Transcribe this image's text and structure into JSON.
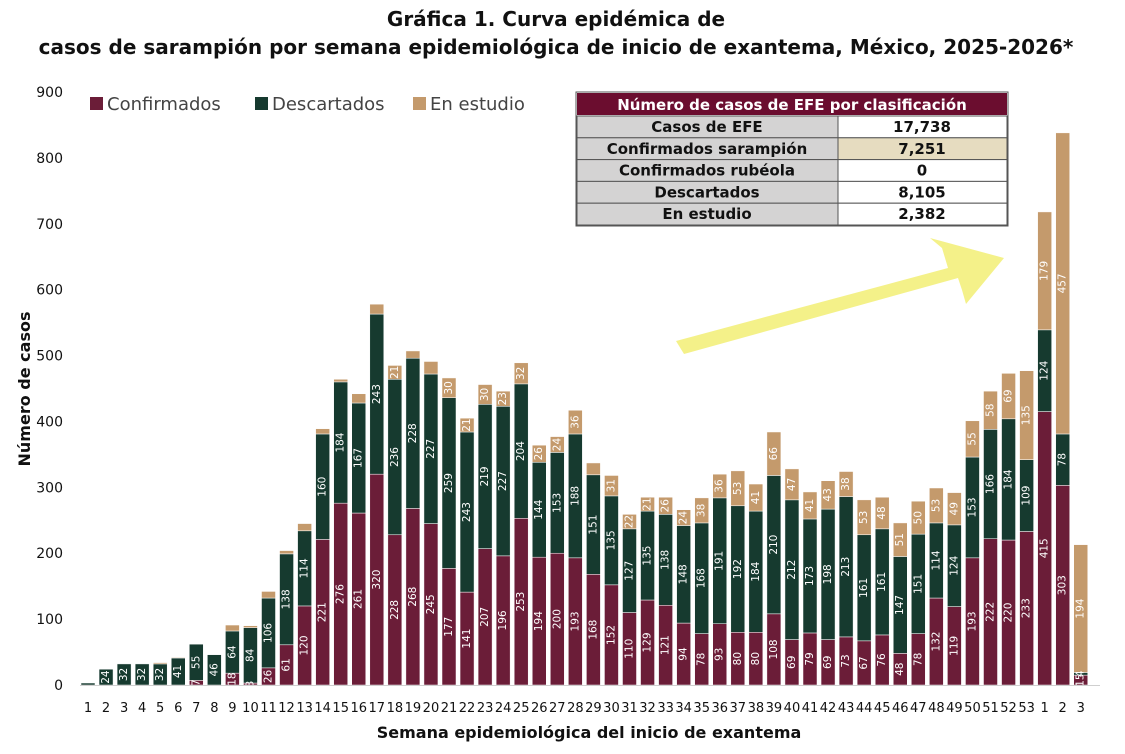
{
  "chart_data": {
    "type": "bar",
    "stacked": true,
    "title_line1": "Gráfica 1. Curva epidémica de",
    "title_line2": "casos de sarampión por semana epidemiológica de inicio de exantema, México, 2025-2026*",
    "xlabel": "Semana epidemiológica del inicio de exantema",
    "ylabel": "Número de casos",
    "ylim": [
      0,
      900
    ],
    "yticks": [
      0,
      100,
      200,
      300,
      400,
      500,
      600,
      700,
      800,
      900
    ],
    "grid": false,
    "legend_position": "top-left",
    "categories": [
      "1",
      "2",
      "3",
      "4",
      "5",
      "6",
      "7",
      "8",
      "9",
      "10",
      "11",
      "12",
      "13",
      "14",
      "15",
      "16",
      "17",
      "18",
      "19",
      "20",
      "21",
      "22",
      "23",
      "24",
      "25",
      "26",
      "27",
      "28",
      "29",
      "30",
      "31",
      "32",
      "33",
      "34",
      "35",
      "36",
      "37",
      "38",
      "39",
      "40",
      "41",
      "42",
      "43",
      "44",
      "45",
      "46",
      "47",
      "48",
      "49",
      "50",
      "51",
      "52",
      "53",
      "1",
      "2",
      "3"
    ],
    "series": [
      {
        "name": "Confirmados",
        "color": "#6b1d38",
        "values": [
          0,
          0,
          0,
          0,
          0,
          0,
          7,
          0,
          18,
          3,
          26,
          61,
          120,
          221,
          276,
          261,
          320,
          228,
          268,
          245,
          177,
          141,
          207,
          196,
          253,
          194,
          200,
          193,
          168,
          152,
          110,
          129,
          121,
          94,
          78,
          93,
          80,
          80,
          108,
          69,
          79,
          69,
          73,
          67,
          76,
          48,
          78,
          132,
          119,
          193,
          222,
          220,
          233,
          415,
          303,
          15
        ],
        "labels": [
          "",
          "",
          "",
          "",
          "",
          "",
          "7",
          "",
          "18",
          "3",
          "26",
          "61",
          "120",
          "221",
          "276",
          "261",
          "320",
          "228",
          "268",
          "245",
          "177",
          "141",
          "207",
          "196",
          "253",
          "194",
          "200",
          "193",
          "168",
          "152",
          "110",
          "129",
          "121",
          "94",
          "78",
          "93",
          "80",
          "80",
          "108",
          "69",
          "79",
          "69",
          "73",
          "67",
          "76",
          "48",
          "78",
          "132",
          "119",
          "193",
          "222",
          "220",
          "233",
          "415",
          "303",
          "15"
        ]
      },
      {
        "name": "Descartados",
        "color": "#163a2f",
        "values": [
          3,
          24,
          32,
          32,
          32,
          41,
          55,
          46,
          64,
          84,
          106,
          138,
          114,
          160,
          184,
          167,
          243,
          236,
          228,
          227,
          259,
          243,
          219,
          227,
          204,
          144,
          153,
          188,
          151,
          135,
          127,
          135,
          138,
          148,
          168,
          191,
          192,
          184,
          210,
          212,
          173,
          198,
          213,
          161,
          161,
          147,
          151,
          114,
          124,
          153,
          166,
          184,
          109,
          124,
          78,
          4
        ],
        "labels": [
          "",
          "24",
          "32",
          "32",
          "32",
          "41",
          "55",
          "46",
          "64",
          "84",
          "106",
          "138",
          "114",
          "160",
          "184",
          "167",
          "243",
          "236",
          "228",
          "227",
          "259",
          "243",
          "219",
          "227",
          "204",
          "144",
          "153",
          "188",
          "151",
          "135",
          "127",
          "135",
          "138",
          "148",
          "168",
          "191",
          "192",
          "184",
          "210",
          "212",
          "173",
          "198",
          "213",
          "161",
          "161",
          "147",
          "151",
          "114",
          "124",
          "153",
          "166",
          "184",
          "109",
          "124",
          "78",
          "4"
        ]
      },
      {
        "name": "En estudio",
        "color": "#c49a6c",
        "values": [
          0,
          0,
          0,
          0,
          2,
          1,
          0,
          0,
          9,
          3,
          10,
          5,
          11,
          8,
          4,
          14,
          15,
          21,
          11,
          19,
          30,
          21,
          30,
          23,
          32,
          26,
          24,
          36,
          18,
          31,
          22,
          21,
          26,
          24,
          38,
          36,
          53,
          41,
          66,
          47,
          41,
          43,
          38,
          53,
          48,
          51,
          50,
          53,
          49,
          55,
          58,
          69,
          135,
          179,
          457,
          194
        ],
        "labels": [
          "",
          "",
          "",
          "",
          "",
          "",
          "",
          "",
          "",
          "",
          "",
          "",
          "",
          "",
          "",
          "",
          "",
          "21",
          "",
          "",
          "30",
          "21",
          "30",
          "23",
          "32",
          "26",
          "24",
          "36",
          "",
          "31",
          "22",
          "21",
          "26",
          "24",
          "38",
          "36",
          "53",
          "41",
          "66",
          "47",
          "41",
          "43",
          "38",
          "53",
          "48",
          "51",
          "50",
          "53",
          "49",
          "55",
          "58",
          "69",
          "135",
          "179",
          "457",
          "194"
        ]
      }
    ]
  },
  "summary_table": {
    "header": "Número de casos de EFE por clasificación",
    "header_color": "#6b0d2f",
    "rows": [
      {
        "label": "Casos de EFE",
        "value": "17,738",
        "highlight": false
      },
      {
        "label": "Confirmados sarampión",
        "value": "7,251",
        "highlight": true
      },
      {
        "label": "Confirmados rubéola",
        "value": "0",
        "highlight": false
      },
      {
        "label": "Descartados",
        "value": "8,105",
        "highlight": false
      },
      {
        "label": "En estudio",
        "value": "2,382",
        "highlight": false
      }
    ],
    "label_bg": "#d4d3d3",
    "highlight_bg": "#e6dcc0",
    "highlight_text": "#7b1c3a"
  },
  "annotation": {
    "arrow_color": "#f3ef7c"
  }
}
